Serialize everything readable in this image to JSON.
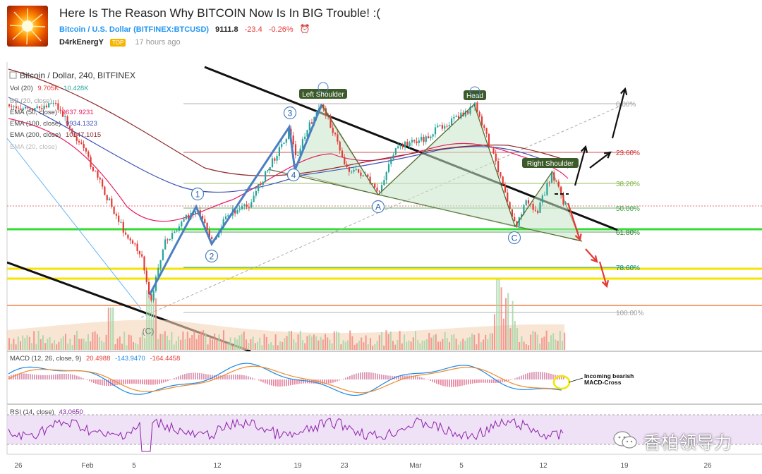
{
  "post": {
    "title": "Here Is The Reason Why BITCOIN Now Is In BIG Trouble! :(",
    "symbol_name": "Bitcoin / U.S. Dollar",
    "symbol_code": "(BITFINEX:BTCUSD)",
    "price": "9111.8",
    "change": "-23.4",
    "change_pct": "-0.26%",
    "author": "D4rkEnergY",
    "badge": "TOP",
    "time": "17 hours ago"
  },
  "watermark": {
    "text": "香柏领导力",
    "icon": "wechat-icon"
  },
  "chart_data": {
    "type": "candlestick",
    "title": "Bitcoin / Dollar, 240, BITFINEX",
    "x_axis": {
      "ticks": [
        "26",
        "Feb",
        "5",
        "12",
        "19",
        "23",
        "Mar",
        "5",
        "12",
        "19",
        "26"
      ]
    },
    "indicators": {
      "volume": {
        "label": "Vol (20)",
        "values": [
          "9.705K",
          "10.428K"
        ],
        "colors": [
          "#e53935",
          "#26a69a"
        ]
      },
      "lines": [
        {
          "label": "BB (20, close)",
          "value": "",
          "color": "#999999"
        },
        {
          "label": "EMA (50, close)",
          "value": "9637.9231",
          "color": "#e91e63"
        },
        {
          "label": "EMA (100, close)",
          "value": "9934.1323",
          "color": "#3f51b5"
        },
        {
          "label": "EMA (200, close)",
          "value": "10147.1015",
          "color": "#8d2b2b"
        },
        {
          "label": "EMA (20, close)",
          "value": "",
          "color": "#bbbbbb"
        }
      ]
    },
    "fib_levels": [
      {
        "label": "0.00%",
        "color": "#9e9e9e"
      },
      {
        "label": "23.60%",
        "color": "#c62828"
      },
      {
        "label": "38.20%",
        "color": "#7cb342"
      },
      {
        "label": "50.00%",
        "color": "#43a047"
      },
      {
        "label": "61.80%",
        "color": "#2e7d32"
      },
      {
        "label": "78.60%",
        "color": "#00897b"
      },
      {
        "label": "100.00%",
        "color": "#9e9e9e"
      }
    ],
    "pattern_labels": [
      "Left Shoulder",
      "Head",
      "Right Shoulder"
    ],
    "wave_labels": [
      "1",
      "2",
      "3",
      "4",
      "A",
      "C",
      "(C)"
    ],
    "macd": {
      "label": "MACD (12, 26, close, 9)",
      "values": [
        "20.4988",
        "-143.9470",
        "-164.4458"
      ],
      "colors": [
        "#e53935",
        "#1e88e5",
        "#e53935"
      ],
      "annotation_line1": "Incoming bearish",
      "annotation_line2": "MACD-Cross"
    },
    "rsi": {
      "label": "RSI (14, close)",
      "value": "43.0650",
      "color": "#7b1fa2"
    }
  }
}
